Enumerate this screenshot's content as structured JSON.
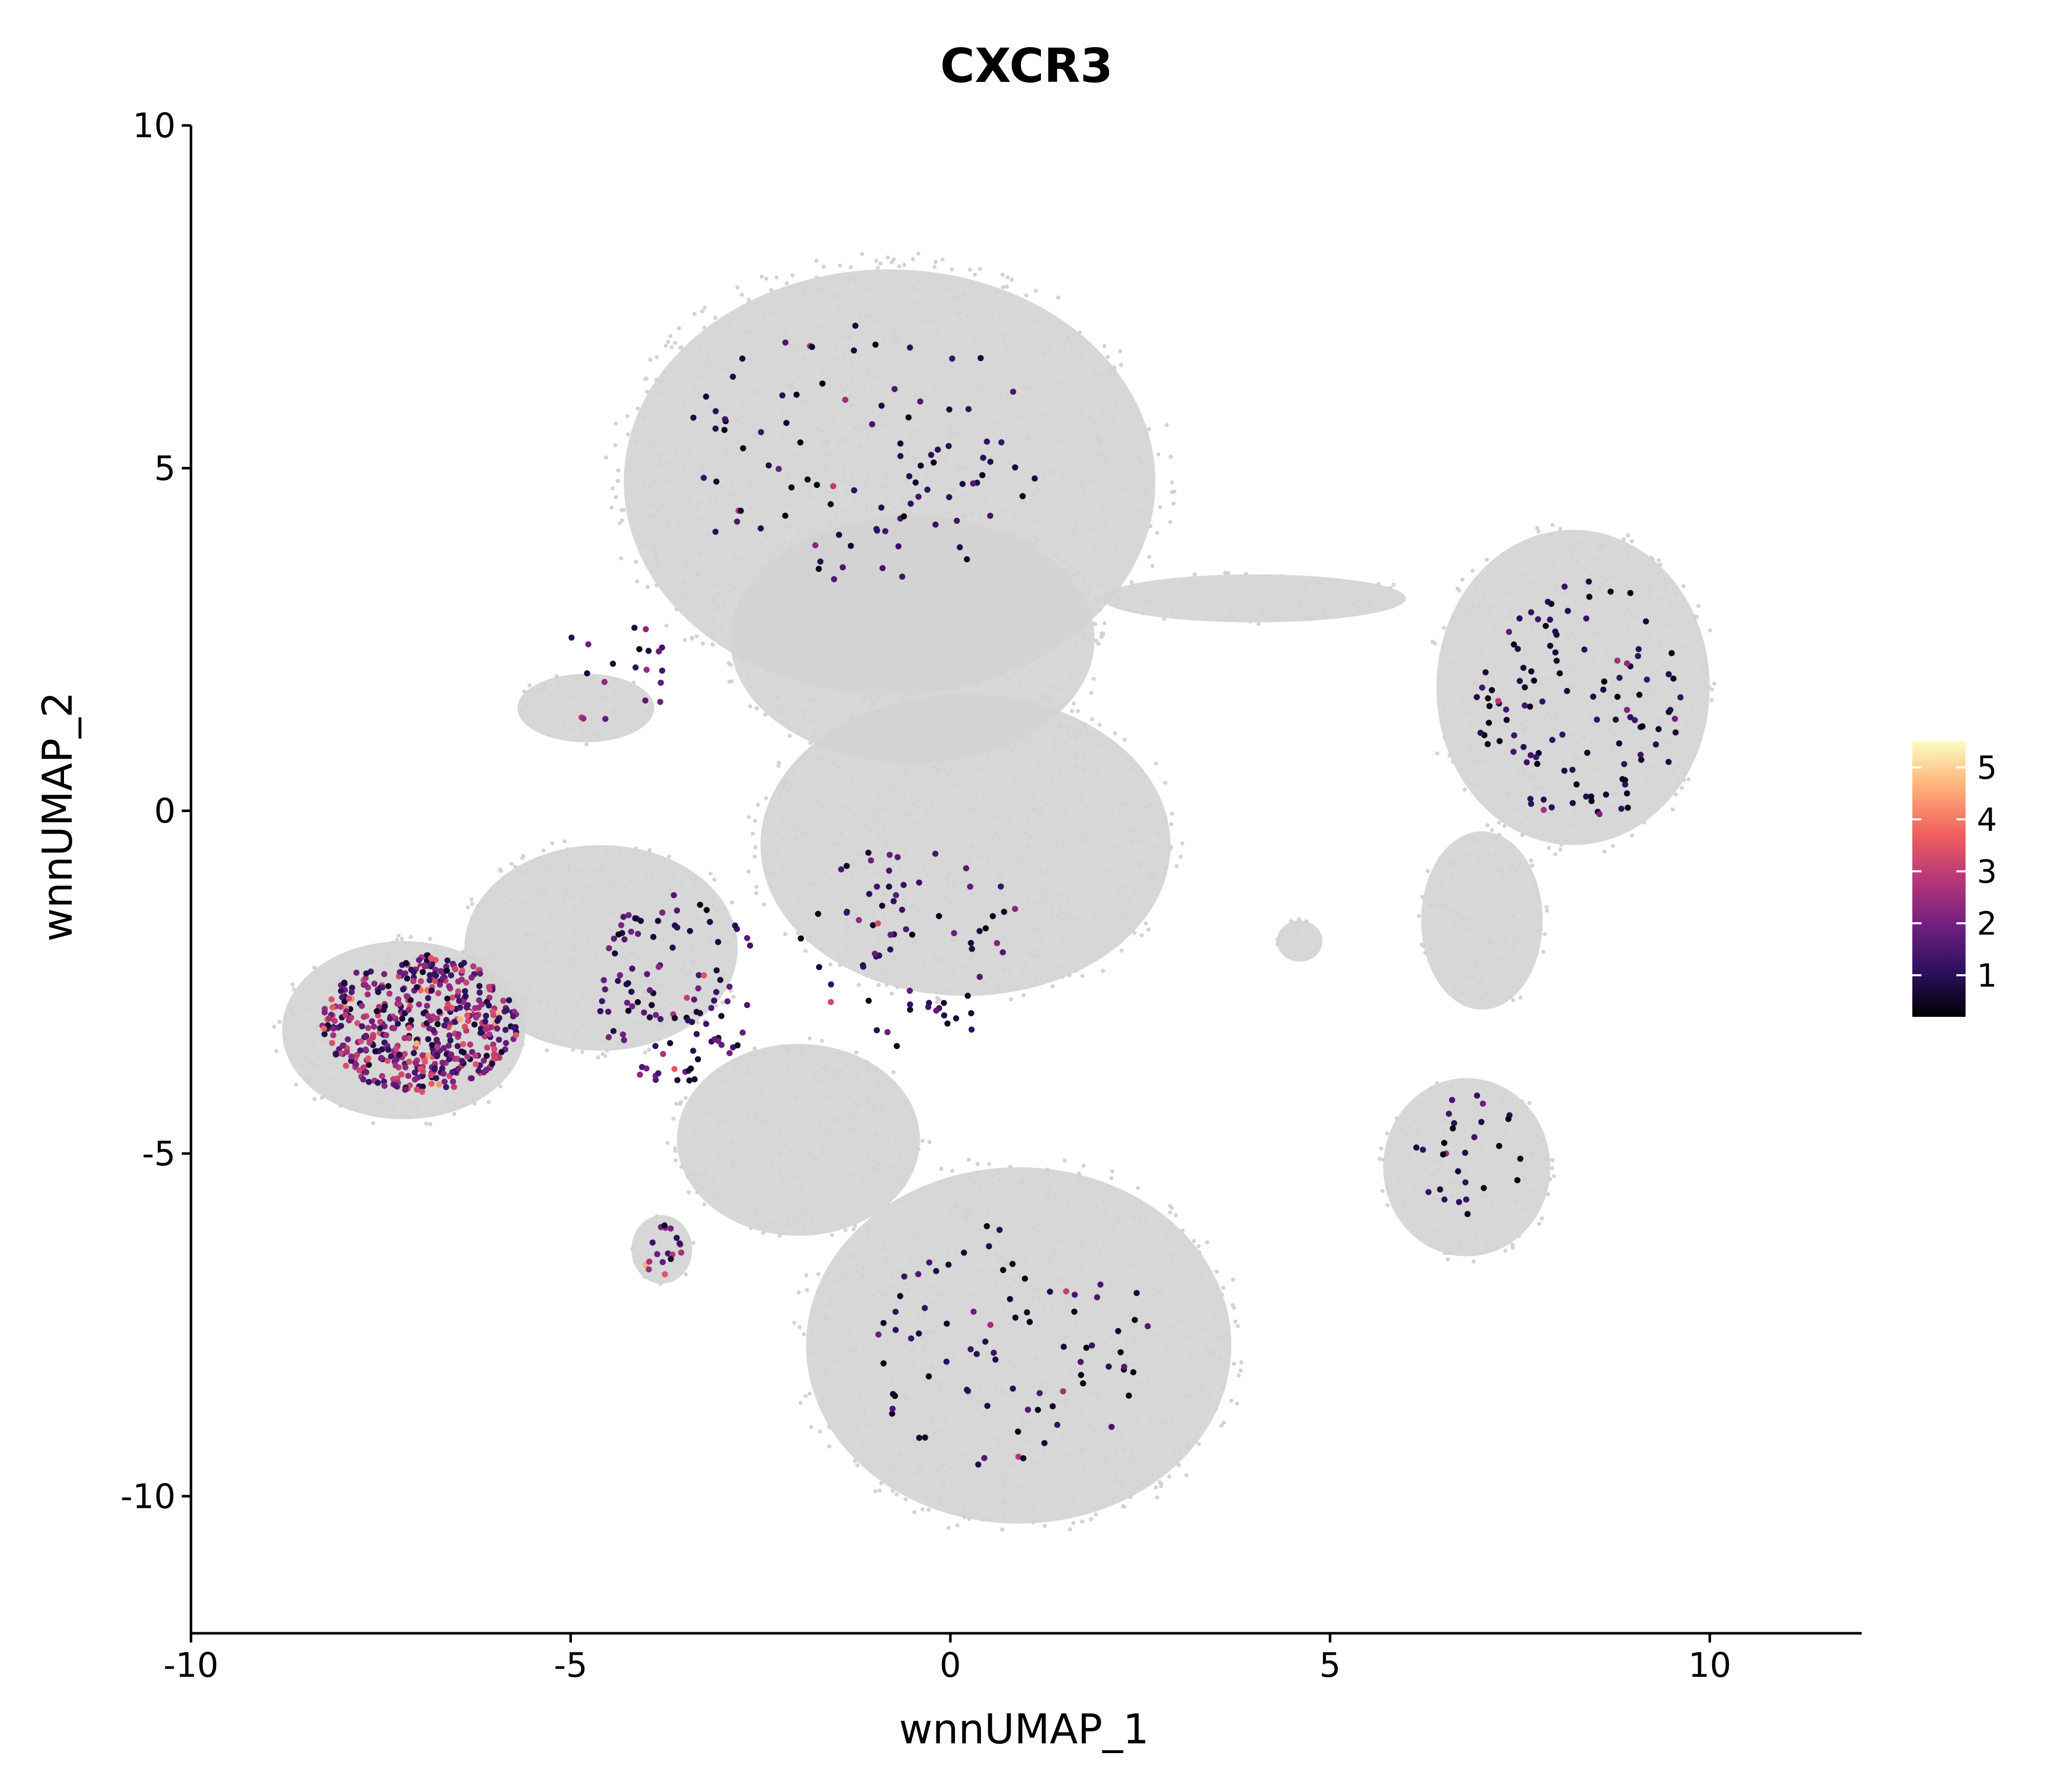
{
  "chart_data": {
    "type": "scatter",
    "title": "CXCR3",
    "xlabel": "wnnUMAP_1",
    "ylabel": "wnnUMAP_2",
    "xlim": [
      -10,
      12
    ],
    "ylim": [
      -12,
      10
    ],
    "x_ticks": [
      -10,
      -5,
      0,
      5,
      10
    ],
    "x_tick_labels": [
      "-10",
      "-5",
      "0",
      "5",
      "10"
    ],
    "y_ticks": [
      -10,
      -5,
      0,
      5,
      10
    ],
    "y_tick_labels": [
      "-10",
      "-5",
      "0",
      "5",
      "10"
    ],
    "grid": false,
    "background_color": "#d3d3d3",
    "color_scale": {
      "name": "magma",
      "min": 0.2,
      "max": 5.5,
      "ticks": [
        1,
        2,
        3,
        4,
        5
      ],
      "tick_labels": [
        "1",
        "2",
        "3",
        "4",
        "5"
      ],
      "stops": [
        "#000004",
        "#2c115f",
        "#721f81",
        "#b73779",
        "#f1605d",
        "#feb078",
        "#fcfdbf"
      ],
      "legend_position": "right"
    },
    "background_clusters": [
      {
        "name": "upper",
        "cx": -0.8,
        "cy": 4.8,
        "rx": 3.5,
        "ry": 3.1
      },
      {
        "name": "upper-center",
        "cx": -0.5,
        "cy": 2.5,
        "rx": 2.4,
        "ry": 1.8
      },
      {
        "name": "center",
        "cx": 0.2,
        "cy": -0.5,
        "rx": 2.7,
        "ry": 2.2
      },
      {
        "name": "left-arm",
        "cx": -4.6,
        "cy": -2.0,
        "rx": 1.8,
        "ry": 1.5
      },
      {
        "name": "left-shelf",
        "cx": -4.8,
        "cy": 1.5,
        "rx": 0.9,
        "ry": 0.5
      },
      {
        "name": "far-left",
        "cx": -7.2,
        "cy": -3.2,
        "rx": 1.6,
        "ry": 1.3
      },
      {
        "name": "lower-left-arm",
        "cx": -2.0,
        "cy": -4.8,
        "rx": 1.6,
        "ry": 1.4
      },
      {
        "name": "small-bulb",
        "cx": -3.8,
        "cy": -6.4,
        "rx": 0.4,
        "ry": 0.5
      },
      {
        "name": "lower",
        "cx": 0.9,
        "cy": -7.8,
        "rx": 2.8,
        "ry": 2.6
      },
      {
        "name": "right",
        "cx": 8.2,
        "cy": 1.8,
        "rx": 1.8,
        "ry": 2.3
      },
      {
        "name": "right-bridge",
        "cx": 4.0,
        "cy": 3.1,
        "rx": 2.0,
        "ry": 0.35
      },
      {
        "name": "lower-right",
        "cx": 6.8,
        "cy": -5.2,
        "rx": 1.1,
        "ry": 1.3
      },
      {
        "name": "lower-right-arm",
        "cx": 7.0,
        "cy": -1.6,
        "rx": 0.8,
        "ry": 1.3
      },
      {
        "name": "tiny-mid",
        "cx": 4.6,
        "cy": -1.9,
        "rx": 0.3,
        "ry": 0.3
      }
    ],
    "expressing_regions": [
      {
        "name": "far-left",
        "cx": -7.0,
        "cy": -3.1,
        "rx": 1.3,
        "ry": 1.0,
        "n": 520,
        "mean_value": 2.0
      },
      {
        "name": "left-arm",
        "cx": -3.6,
        "cy": -2.6,
        "rx": 1.1,
        "ry": 1.4,
        "n": 110,
        "mean_value": 1.2
      },
      {
        "name": "upper",
        "cx": -1.2,
        "cy": 5.2,
        "rx": 2.4,
        "ry": 1.9,
        "n": 95,
        "mean_value": 0.9
      },
      {
        "name": "right",
        "cx": 8.3,
        "cy": 1.6,
        "rx": 1.4,
        "ry": 1.8,
        "n": 115,
        "mean_value": 0.8
      },
      {
        "name": "lower",
        "cx": 0.8,
        "cy": -7.8,
        "rx": 1.9,
        "ry": 1.8,
        "n": 80,
        "mean_value": 0.9
      },
      {
        "name": "center",
        "cx": -0.5,
        "cy": -2.0,
        "rx": 1.6,
        "ry": 1.5,
        "n": 70,
        "mean_value": 1.1
      },
      {
        "name": "lower-right",
        "cx": 6.9,
        "cy": -5.0,
        "rx": 0.8,
        "ry": 0.9,
        "n": 28,
        "mean_value": 0.8
      },
      {
        "name": "small-bulb",
        "cx": -3.8,
        "cy": -6.4,
        "rx": 0.3,
        "ry": 0.4,
        "n": 18,
        "mean_value": 2.2
      },
      {
        "name": "left-shelf",
        "cx": -4.4,
        "cy": 2.0,
        "rx": 0.8,
        "ry": 0.8,
        "n": 20,
        "mean_value": 1.5
      }
    ]
  }
}
